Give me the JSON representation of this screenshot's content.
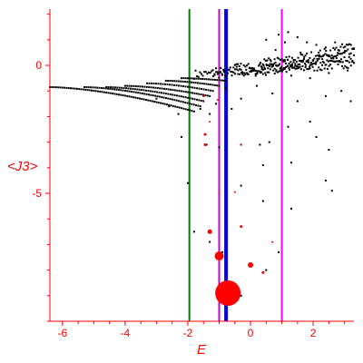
{
  "chart_data": {
    "type": "scatter",
    "title": "",
    "xlabel": "E",
    "ylabel": "<J3>",
    "xlim": [
      -6.4,
      3.3
    ],
    "ylim": [
      -10.0,
      2.2
    ],
    "xticks": [
      -6,
      -4,
      -2,
      0,
      2
    ],
    "yticks": [
      0,
      -5
    ],
    "grid": false,
    "colors": {
      "axis": "#ff0000",
      "points": "#000000",
      "highlight": "#ff0000",
      "line_green": "#008000",
      "line_blue": "#0000ff",
      "line_magenta": "#ff00ff"
    },
    "vlines": [
      {
        "x": -1.95,
        "color": "#008000",
        "width": 2
      },
      {
        "x": -1.0,
        "color": "#cc00cc",
        "width": 2
      },
      {
        "x": -0.78,
        "color": "#0000ff",
        "width": 4
      },
      {
        "x": 1.0,
        "color": "#ff00ff",
        "width": 2
      }
    ],
    "branches": [
      {
        "x_start": -6.4,
        "y_start": -0.85,
        "x_end": -1.8,
        "y_end": -1.8,
        "n": 70
      },
      {
        "x_start": -5.3,
        "y_start": -0.85,
        "x_end": -1.6,
        "y_end": -1.6,
        "n": 55
      },
      {
        "x_start": -4.6,
        "y_start": -0.85,
        "x_end": -1.5,
        "y_end": -1.4,
        "n": 45
      },
      {
        "x_start": -4.0,
        "y_start": -0.8,
        "x_end": -1.3,
        "y_end": -1.2,
        "n": 40
      },
      {
        "x_start": -3.3,
        "y_start": -0.7,
        "x_end": -1.2,
        "y_end": -1.0,
        "n": 30
      },
      {
        "x_start": -2.7,
        "y_start": -0.6,
        "x_end": -1.0,
        "y_end": -0.8,
        "n": 26
      },
      {
        "x_start": -2.2,
        "y_start": -0.5,
        "x_end": -0.8,
        "y_end": -0.6,
        "n": 22
      },
      {
        "x_start": -1.8,
        "y_start": -0.35,
        "x_end": 3.3,
        "y_end": 0.1,
        "n": 110
      },
      {
        "x_start": -1.2,
        "y_start": -0.25,
        "x_end": 3.3,
        "y_end": 0.3,
        "n": 90
      },
      {
        "x_start": -0.5,
        "y_start": -0.1,
        "x_end": 3.3,
        "y_end": 0.5,
        "n": 80
      },
      {
        "x_start": 0.3,
        "y_start": 0.1,
        "x_end": 3.3,
        "y_end": 0.8,
        "n": 65
      }
    ],
    "black_points": [
      {
        "x": 0.5,
        "y": 1.0
      },
      {
        "x": 0.9,
        "y": 1.2
      },
      {
        "x": 1.2,
        "y": 1.3
      },
      {
        "x": 1.5,
        "y": 1.1
      },
      {
        "x": 1.8,
        "y": 0.9
      },
      {
        "x": 2.1,
        "y": 0.8
      },
      {
        "x": 2.4,
        "y": 0.7
      },
      {
        "x": 2.8,
        "y": 0.6
      },
      {
        "x": 0.8,
        "y": 0.6
      },
      {
        "x": 1.1,
        "y": 0.9
      },
      {
        "x": 1.6,
        "y": 0.5
      },
      {
        "x": 2.2,
        "y": 0.4
      },
      {
        "x": 1.3,
        "y": -0.4
      },
      {
        "x": 1.9,
        "y": -0.5
      },
      {
        "x": 2.5,
        "y": -0.3
      },
      {
        "x": 3.1,
        "y": -0.2
      },
      {
        "x": 0.2,
        "y": -0.8
      },
      {
        "x": 0.7,
        "y": -1.1
      },
      {
        "x": 1.5,
        "y": -1.4
      },
      {
        "x": 2.4,
        "y": -1.2
      },
      {
        "x": 2.9,
        "y": -1.0
      },
      {
        "x": 3.2,
        "y": -1.4
      },
      {
        "x": -0.3,
        "y": -1.3
      },
      {
        "x": -0.6,
        "y": -1.7
      },
      {
        "x": -1.3,
        "y": -1.9
      },
      {
        "x": -1.1,
        "y": -1.5
      },
      {
        "x": -1.6,
        "y": -1.7
      },
      {
        "x": -2.2,
        "y": -2.8
      },
      {
        "x": -1.4,
        "y": -3.1
      },
      {
        "x": -1.0,
        "y": -3.2
      },
      {
        "x": -0.3,
        "y": -3.1
      },
      {
        "x": 0.3,
        "y": -3.1
      },
      {
        "x": 0.6,
        "y": -3.0
      },
      {
        "x": 1.2,
        "y": -2.4
      },
      {
        "x": 1.9,
        "y": -2.2
      },
      {
        "x": 2.1,
        "y": -2.8
      },
      {
        "x": 2.5,
        "y": -3.3
      },
      {
        "x": 0.4,
        "y": -3.9
      },
      {
        "x": 1.3,
        "y": -3.8
      },
      {
        "x": 2.4,
        "y": -4.5
      },
      {
        "x": 2.6,
        "y": -4.9
      },
      {
        "x": -2.0,
        "y": -4.6
      },
      {
        "x": -0.3,
        "y": -4.7
      },
      {
        "x": 0.4,
        "y": -5.3
      },
      {
        "x": 1.3,
        "y": -5.6
      },
      {
        "x": -1.8,
        "y": -6.5
      },
      {
        "x": -1.3,
        "y": -6.9
      },
      {
        "x": -0.9,
        "y": -7.3
      },
      {
        "x": 0.9,
        "y": -7.3
      },
      {
        "x": -0.9,
        "y": -8.8
      },
      {
        "x": -0.3,
        "y": -9.0
      },
      {
        "x": 0.5,
        "y": -8.0
      },
      {
        "x": -2.3,
        "y": -1.9
      },
      {
        "x": -2.6,
        "y": -1.6
      },
      {
        "x": -3.0,
        "y": -1.3
      },
      {
        "x": -0.8,
        "y": -0.9
      },
      {
        "x": 2.7,
        "y": 0.9
      },
      {
        "x": 3.0,
        "y": 0.5
      }
    ],
    "red_points": [
      {
        "x": -0.72,
        "y": -8.9,
        "r": 14
      },
      {
        "x": -1.0,
        "y": -7.45,
        "r": 5
      },
      {
        "x": -1.3,
        "y": -6.5,
        "r": 2.5
      },
      {
        "x": 0.0,
        "y": -7.8,
        "r": 3
      },
      {
        "x": -0.3,
        "y": -6.3,
        "r": 1.5
      },
      {
        "x": 0.4,
        "y": -8.1,
        "r": 1.5
      },
      {
        "x": -1.45,
        "y": -2.7,
        "r": 1.5
      },
      {
        "x": -1.45,
        "y": -3.1,
        "r": 1.5
      },
      {
        "x": -0.3,
        "y": -3.1,
        "r": 1
      },
      {
        "x": -1.0,
        "y": -5.0,
        "r": 1
      },
      {
        "x": -0.5,
        "y": -4.95,
        "r": 1
      },
      {
        "x": 0.7,
        "y": -6.9,
        "r": 1
      },
      {
        "x": -1.5,
        "y": -1.2,
        "r": 1.2
      },
      {
        "x": -1.05,
        "y": -1.35,
        "r": 1
      },
      {
        "x": -1.3,
        "y": -2.2,
        "r": 1
      }
    ]
  }
}
